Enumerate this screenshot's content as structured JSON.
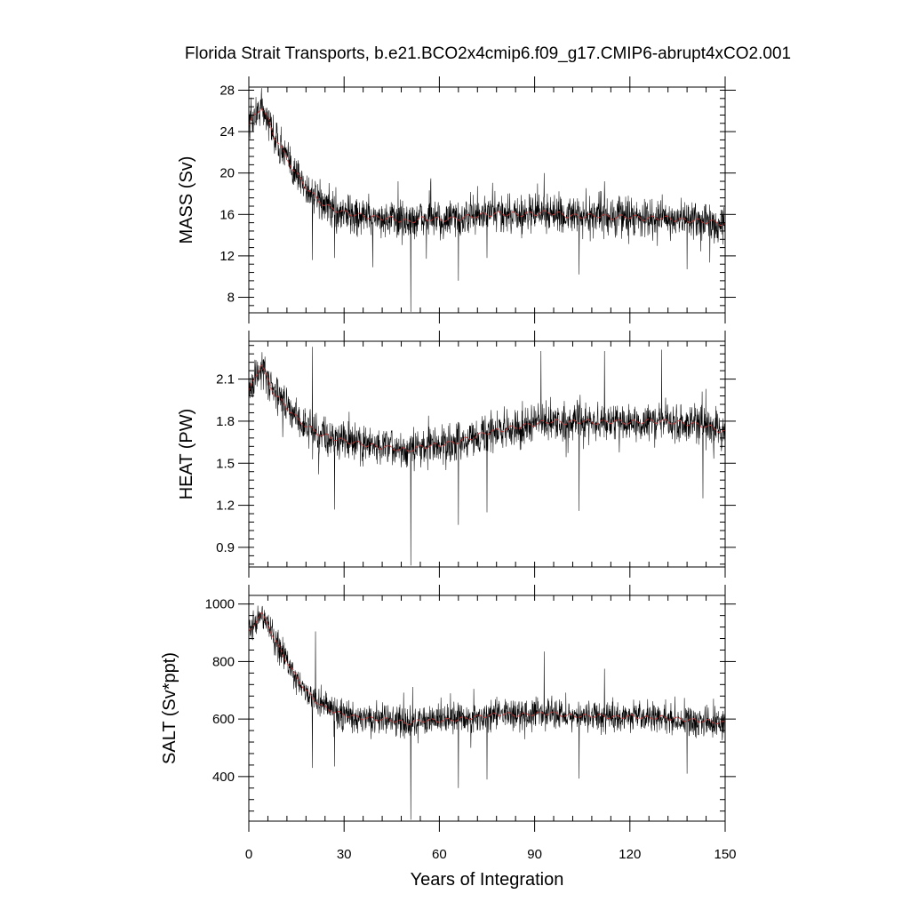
{
  "chart_data": {
    "type": "line",
    "title": "Florida Strait Transports, b.e21.BCO2x4cmip6.f09_g17.CMIP6-abrupt4xCO2.001",
    "xlabel": "Years of Integration",
    "xlim": [
      0,
      150
    ],
    "xticks": [
      "0",
      "30",
      "60",
      "90",
      "120",
      "150"
    ],
    "series_colors": {
      "monthly": "#000000",
      "annual_mean": "#cc3333"
    },
    "panels": [
      {
        "ylabel": "MASS (Sv)",
        "ylim": [
          6.5,
          28.3
        ],
        "yticks": [
          "8",
          "12",
          "16",
          "20",
          "24",
          "28"
        ],
        "annual_mean": [
          [
            0,
            24.6
          ],
          [
            2,
            25.6
          ],
          [
            4,
            26.4
          ],
          [
            6,
            25.2
          ],
          [
            8,
            23.6
          ],
          [
            10,
            22.6
          ],
          [
            12,
            21.4
          ],
          [
            14,
            20.4
          ],
          [
            16,
            19.5
          ],
          [
            18,
            18.7
          ],
          [
            20,
            18.0
          ],
          [
            22,
            17.4
          ],
          [
            24,
            16.9
          ],
          [
            26,
            16.6
          ],
          [
            28,
            16.4
          ],
          [
            30,
            16.2
          ],
          [
            35,
            15.9
          ],
          [
            40,
            15.7
          ],
          [
            45,
            15.6
          ],
          [
            50,
            15.3
          ],
          [
            55,
            15.6
          ],
          [
            60,
            15.5
          ],
          [
            65,
            15.6
          ],
          [
            70,
            15.8
          ],
          [
            75,
            16.0
          ],
          [
            80,
            16.1
          ],
          [
            85,
            16.0
          ],
          [
            90,
            16.1
          ],
          [
            95,
            16.2
          ],
          [
            100,
            15.9
          ],
          [
            105,
            15.8
          ],
          [
            110,
            15.9
          ],
          [
            115,
            15.7
          ],
          [
            120,
            15.8
          ],
          [
            125,
            15.6
          ],
          [
            130,
            15.7
          ],
          [
            135,
            15.5
          ],
          [
            140,
            15.4
          ],
          [
            145,
            15.3
          ],
          [
            150,
            15.1
          ]
        ],
        "noise": 1.8,
        "extremes": [
          [
            51,
            6.6
          ],
          [
            20,
            11.6
          ],
          [
            27,
            11.8
          ],
          [
            39,
            10.9
          ],
          [
            66,
            9.6
          ],
          [
            75,
            11.8
          ],
          [
            93,
            20.0
          ],
          [
            104,
            10.2
          ],
          [
            112,
            19.2
          ],
          [
            138,
            10.7
          ],
          [
            47,
            19.2
          ]
        ]
      },
      {
        "ylabel": "HEAT (PW)",
        "ylim": [
          0.76,
          2.37
        ],
        "yticks": [
          "0.9",
          "1.2",
          "1.5",
          "1.8",
          "2.1"
        ],
        "annual_mean": [
          [
            0,
            2.0
          ],
          [
            2,
            2.12
          ],
          [
            4,
            2.2
          ],
          [
            6,
            2.1
          ],
          [
            8,
            2.0
          ],
          [
            10,
            1.95
          ],
          [
            12,
            1.9
          ],
          [
            14,
            1.85
          ],
          [
            16,
            1.8
          ],
          [
            18,
            1.77
          ],
          [
            20,
            1.74
          ],
          [
            22,
            1.71
          ],
          [
            25,
            1.69
          ],
          [
            30,
            1.66
          ],
          [
            35,
            1.64
          ],
          [
            40,
            1.62
          ],
          [
            45,
            1.61
          ],
          [
            50,
            1.59
          ],
          [
            55,
            1.62
          ],
          [
            60,
            1.63
          ],
          [
            65,
            1.65
          ],
          [
            70,
            1.68
          ],
          [
            75,
            1.72
          ],
          [
            80,
            1.74
          ],
          [
            85,
            1.76
          ],
          [
            90,
            1.78
          ],
          [
            95,
            1.8
          ],
          [
            100,
            1.79
          ],
          [
            105,
            1.8
          ],
          [
            110,
            1.79
          ],
          [
            115,
            1.8
          ],
          [
            120,
            1.79
          ],
          [
            125,
            1.8
          ],
          [
            130,
            1.8
          ],
          [
            135,
            1.79
          ],
          [
            140,
            1.78
          ],
          [
            145,
            1.76
          ],
          [
            150,
            1.72
          ]
        ],
        "noise": 0.13,
        "extremes": [
          [
            51,
            0.77
          ],
          [
            20,
            1.16
          ],
          [
            27,
            1.17
          ],
          [
            66,
            1.06
          ],
          [
            75,
            1.15
          ],
          [
            92,
            2.3
          ],
          [
            104,
            1.16
          ],
          [
            112,
            2.3
          ],
          [
            130,
            2.31
          ],
          [
            143,
            1.25
          ],
          [
            20,
            2.33
          ]
        ]
      },
      {
        "ylabel": "SALT (Sv*ppt)",
        "ylim": [
          245,
          1030
        ],
        "yticks": [
          "400",
          "600",
          "800",
          "1000"
        ],
        "annual_mean": [
          [
            0,
            900
          ],
          [
            2,
            935
          ],
          [
            4,
            965
          ],
          [
            6,
            930
          ],
          [
            8,
            880
          ],
          [
            10,
            840
          ],
          [
            12,
            800
          ],
          [
            14,
            765
          ],
          [
            16,
            730
          ],
          [
            18,
            700
          ],
          [
            20,
            675
          ],
          [
            22,
            655
          ],
          [
            24,
            640
          ],
          [
            26,
            630
          ],
          [
            28,
            622
          ],
          [
            30,
            615
          ],
          [
            35,
            605
          ],
          [
            40,
            600
          ],
          [
            45,
            597
          ],
          [
            50,
            585
          ],
          [
            55,
            596
          ],
          [
            60,
            594
          ],
          [
            65,
            598
          ],
          [
            70,
            605
          ],
          [
            75,
            612
          ],
          [
            80,
            618
          ],
          [
            85,
            614
          ],
          [
            90,
            618
          ],
          [
            95,
            622
          ],
          [
            100,
            612
          ],
          [
            105,
            610
          ],
          [
            110,
            612
          ],
          [
            115,
            606
          ],
          [
            120,
            610
          ],
          [
            125,
            604
          ],
          [
            130,
            606
          ],
          [
            135,
            600
          ],
          [
            140,
            596
          ],
          [
            145,
            592
          ],
          [
            150,
            585
          ]
        ],
        "noise": 52,
        "extremes": [
          [
            51,
            250
          ],
          [
            20,
            430
          ],
          [
            27,
            435
          ],
          [
            66,
            360
          ],
          [
            75,
            390
          ],
          [
            93,
            835
          ],
          [
            104,
            393
          ],
          [
            112,
            775
          ],
          [
            138,
            410
          ],
          [
            21,
            905
          ]
        ]
      }
    ]
  }
}
